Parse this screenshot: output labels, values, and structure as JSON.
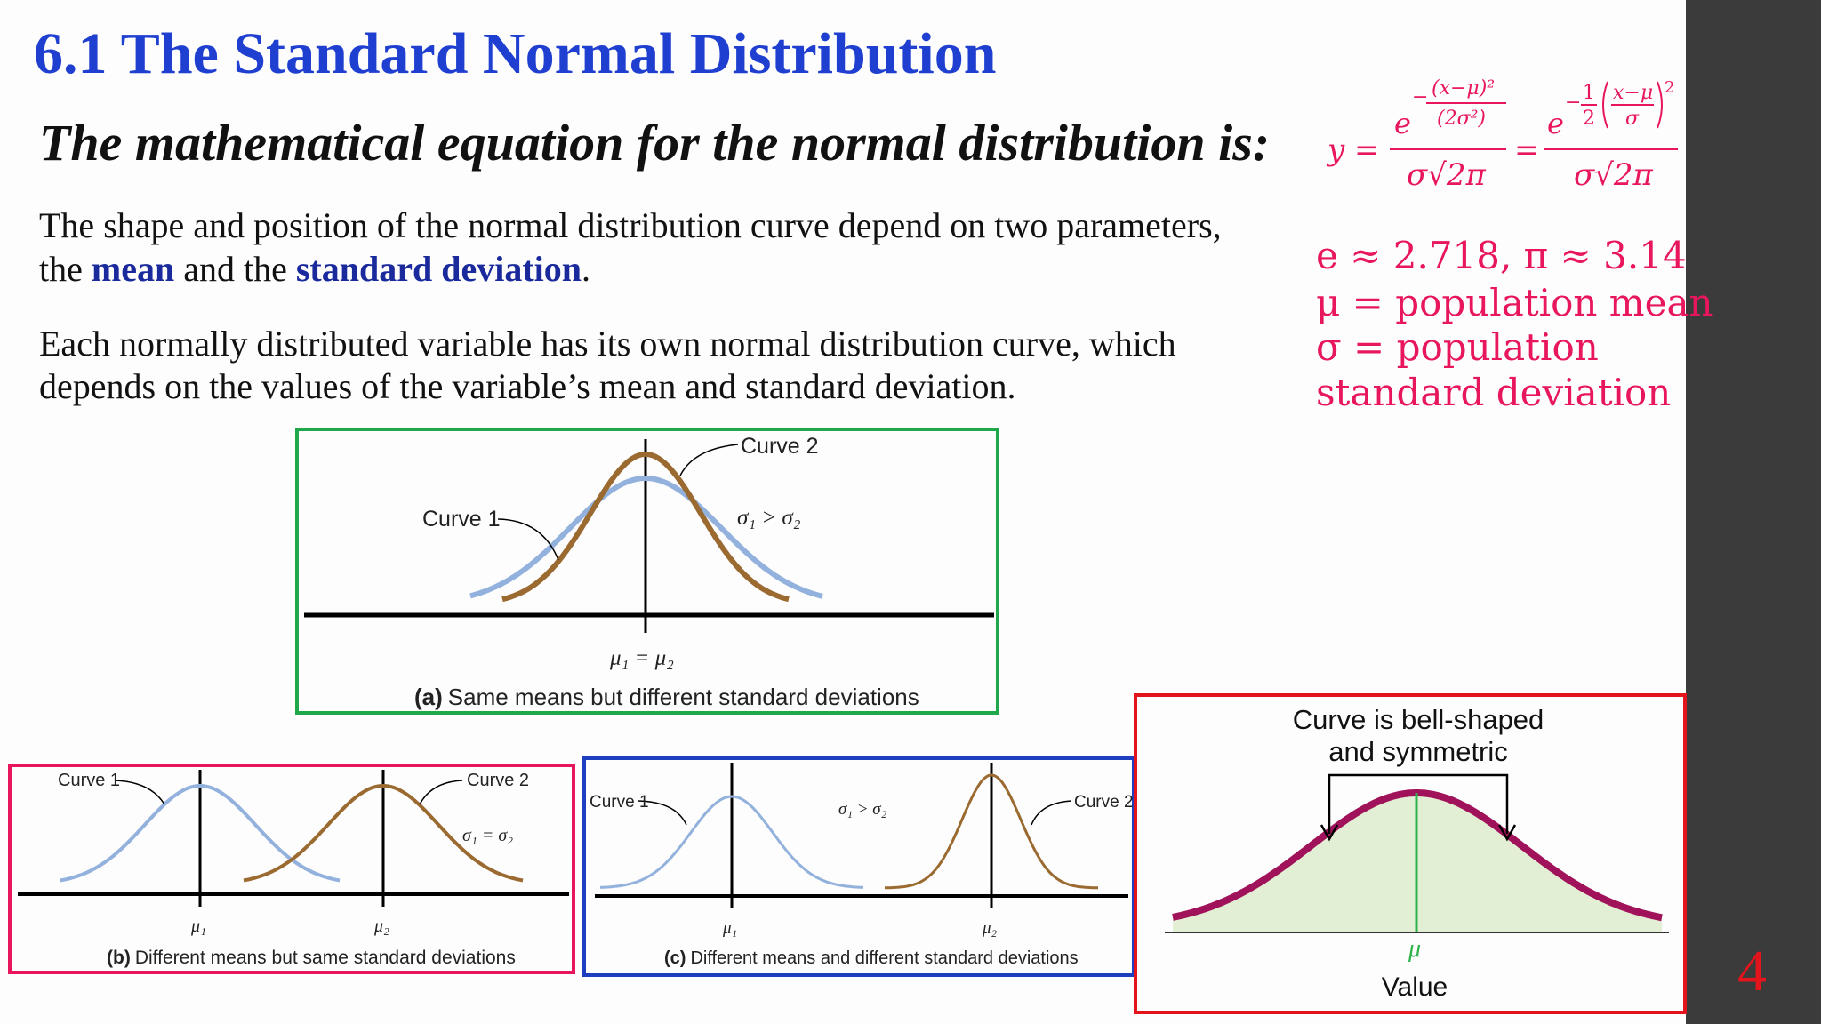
{
  "header": {
    "title": "6.1  The Standard Normal Distribution",
    "subtitle": "The mathematical equation for the normal distribution is:"
  },
  "formula": {
    "lhs": "y =",
    "base": "e",
    "minus": "−",
    "exp1_num": "(x−μ)²",
    "exp1_den": "(2σ²)",
    "denominator": "σ√2π",
    "equals": "=",
    "exp2_coef_num": "1",
    "exp2_coef_den": "2",
    "exp2_num": "x−μ",
    "exp2_den": "σ",
    "exp2_power": "2"
  },
  "definitions": [
    "e ≈ 2.718, π ≈ 3.14",
    "μ = population mean",
    "σ = population",
    "standard deviation"
  ],
  "body": {
    "paragraph1": {
      "line1": "The shape and position of the normal distribution curve depend on two parameters,",
      "line2_a": "the ",
      "line2_b": "mean",
      "line2_c": " and the ",
      "line2_d": "standard deviation",
      "line2_e": "."
    },
    "paragraph2": {
      "line1": "Each normally distributed variable has its own normal distribution curve, which",
      "line2": "depends on the values of the variable’s mean and standard deviation."
    }
  },
  "figures": {
    "a": {
      "curve2": "Curve 2",
      "curve1": "Curve 1",
      "relation": "σ₁ > σ₂",
      "means": "μ₁ = μ₂",
      "label": "(a)",
      "caption": "Same means but different standard deviations"
    },
    "b": {
      "curve1": "Curve 1",
      "curve2": "Curve 2",
      "relation": "σ₁ = σ₂",
      "mean1": "μ₁",
      "mean2": "μ₂",
      "label": "(b)",
      "caption": "Different means but same standard deviations"
    },
    "c": {
      "curve1": "Curve 1",
      "relation": "σ₁ > σ₂",
      "curve2": "Curve 2",
      "mean1": "μ₁",
      "mean2": "μ₂",
      "label": "(c)",
      "caption": "Different means and different standard deviations"
    },
    "d": {
      "line1": "Curve is bell-shaped",
      "line2": "and symmetric",
      "mean": "μ",
      "axis": "Value"
    }
  },
  "page_number": "4"
}
